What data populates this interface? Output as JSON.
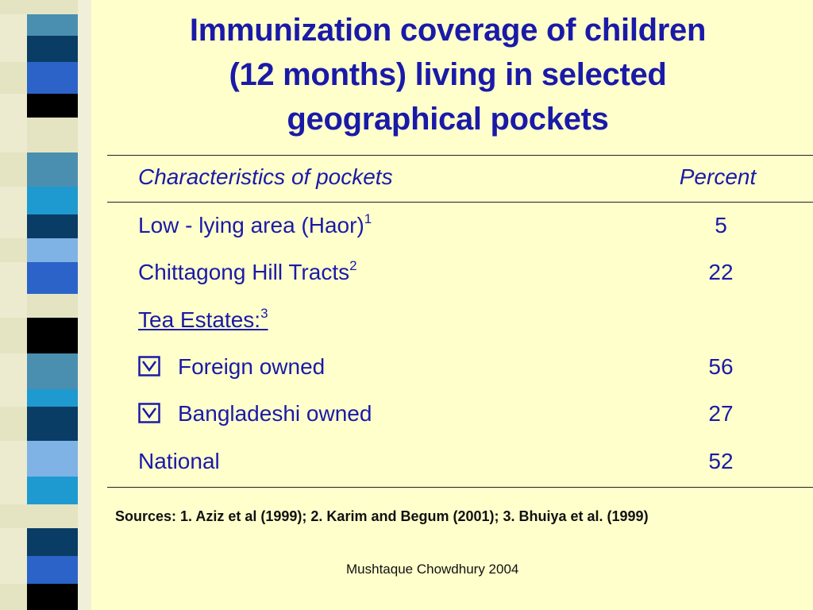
{
  "slide": {
    "title_lines": [
      "Immunization coverage of children",
      "(12 months) living in selected",
      "geographical pockets"
    ],
    "stripe_colors": {
      "light": "#e4e4c2",
      "dark": "#0a3d66",
      "blue": "#2b63c8",
      "black": "#000000",
      "teal": "#4a8fb0",
      "sky": "#7fb3e6",
      "cyan": "#1e9ad0"
    },
    "table": {
      "header": {
        "label": "Characteristics of pockets",
        "value": "Percent"
      },
      "rows": [
        {
          "label": "Low - lying area (Haor)",
          "sup": "1",
          "value": "5"
        },
        {
          "label": "Chittagong Hill Tracts",
          "sup": "2",
          "value": "22"
        },
        {
          "label": "Tea Estates:",
          "sup": "3",
          "value": ""
        },
        {
          "label": "Foreign owned",
          "value": "56",
          "bullet_icon": "checkbox-check-icon"
        },
        {
          "label": "Bangladeshi owned",
          "value": "27",
          "bullet_icon": "checkbox-check-icon"
        },
        {
          "label": "National",
          "value": "52"
        }
      ]
    },
    "sources": "Sources: 1. Aziz et al (1999); 2. Karim and Begum (2001); 3. Bhuiya et al. (1999)",
    "credit": "Mushtaque Chowdhury 2004"
  }
}
